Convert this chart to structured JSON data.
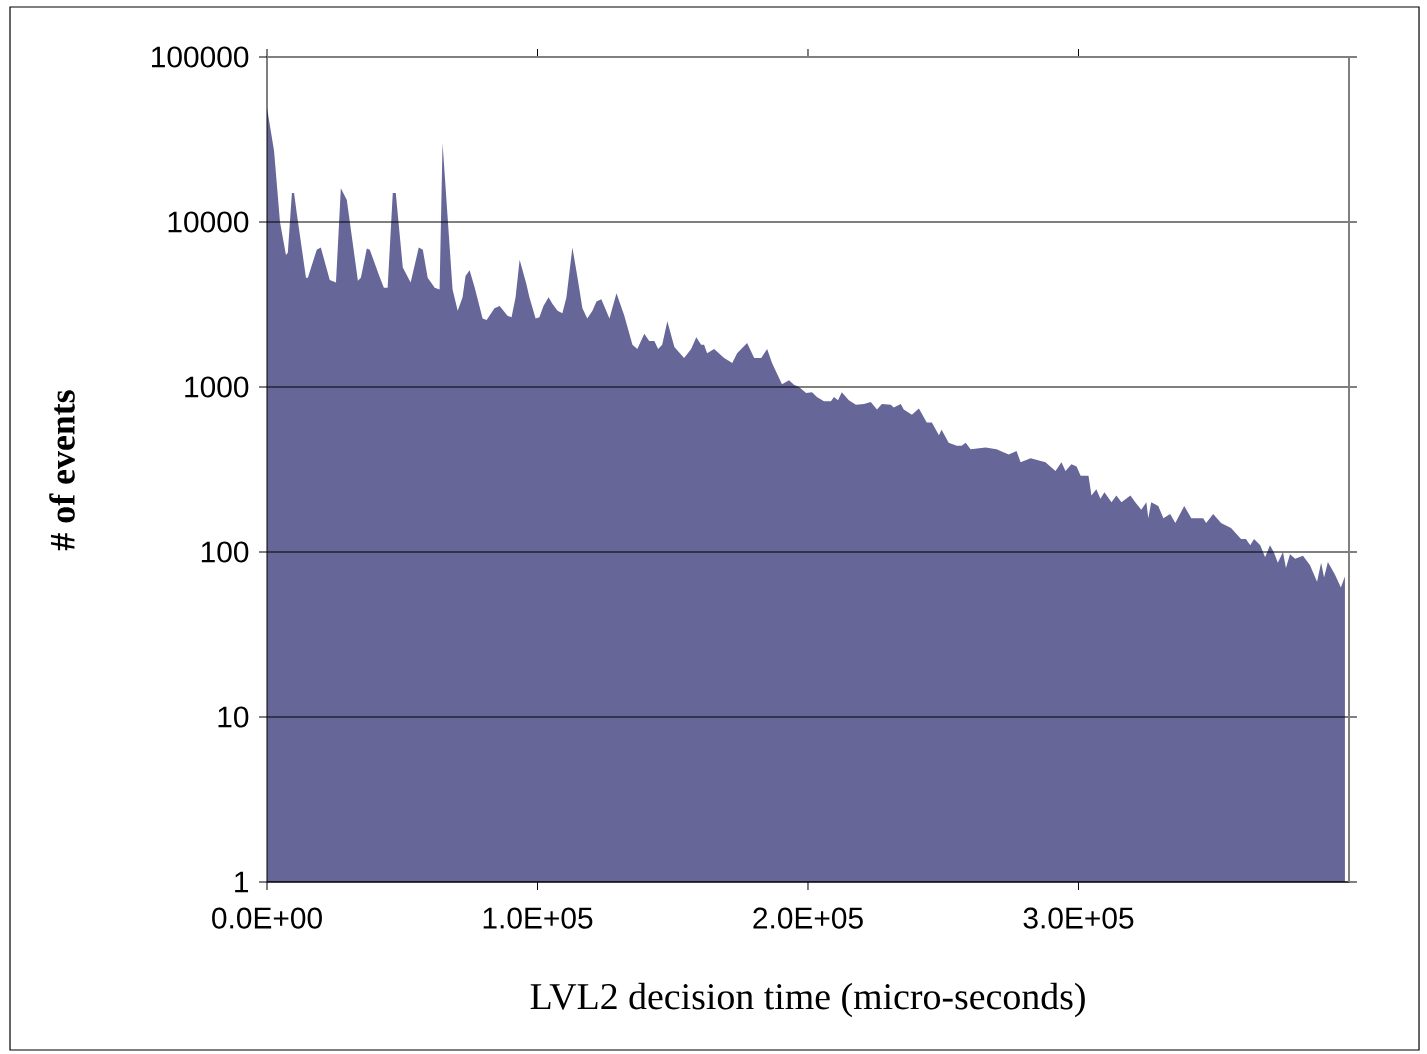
{
  "chart_data": {
    "type": "area",
    "xlabel": "LVL2 decision time (micro-seconds)",
    "ylabel": "# of events",
    "color": "#666699",
    "log": true,
    "grid": "y",
    "xlim": [
      0,
      400000
    ],
    "ylim": [
      1,
      100000
    ],
    "xticks": [
      {
        "value": 0,
        "label": "0.0E+00"
      },
      {
        "value": 100000,
        "label": "1.0E+05"
      },
      {
        "value": 200000,
        "label": "2.0E+05"
      },
      {
        "value": 300000,
        "label": "3.0E+05"
      }
    ],
    "yticks": [
      1,
      10,
      100,
      1000,
      10000,
      100000
    ],
    "x": [
      0,
      2600,
      4800,
      7000,
      7700,
      9200,
      10000,
      11000,
      14400,
      15100,
      18400,
      19900,
      23200,
      25500,
      27300,
      29500,
      33600,
      34700,
      36900,
      38000,
      41300,
      43200,
      44600,
      46500,
      47600,
      50200,
      53100,
      56100,
      57600,
      59400,
      62000,
      63800,
      64900,
      68600,
      70500,
      72300,
      73400,
      74900,
      76800,
      79700,
      81200,
      84100,
      86000,
      88900,
      90400,
      91900,
      93400,
      95900,
      97000,
      99300,
      100700,
      102200,
      104100,
      105500,
      107400,
      109200,
      110700,
      112900,
      114800,
      116600,
      118400,
      120300,
      121800,
      123600,
      126600,
      129200,
      132100,
      135100,
      136900,
      139500,
      141300,
      143200,
      144600,
      146100,
      148000,
      150600,
      154200,
      156800,
      158700,
      160500,
      161600,
      162700,
      165300,
      169000,
      172000,
      173800,
      177500,
      180100,
      182700,
      184900,
      186700,
      190400,
      193000,
      194800,
      196700,
      199300,
      201500,
      203300,
      205900,
      208500,
      209600,
      211100,
      212500,
      215100,
      217700,
      220700,
      223200,
      225500,
      227300,
      230600,
      231700,
      234300,
      235400,
      238400,
      241000,
      243900,
      245800,
      248400,
      249400,
      252000,
      255000,
      256800,
      258300,
      260100,
      265700,
      269700,
      274200,
      277100,
      278600,
      282300,
      287800,
      291500,
      293700,
      295200,
      297400,
      299300,
      300800,
      303700,
      304800,
      306600,
      308100,
      309600,
      312200,
      314000,
      315900,
      319200,
      321000,
      323200,
      325100,
      325800,
      326900,
      329500,
      331400,
      333900,
      335800,
      339100,
      341700,
      343900,
      346100,
      347200,
      349800,
      352700,
      356400,
      360100,
      361900,
      363500,
      364900,
      367200,
      369000,
      370800,
      372300,
      373700,
      375600,
      376700,
      378200,
      380100,
      383000,
      385600,
      388200,
      389700,
      390800,
      392200,
      394800,
      397000,
      398500
    ],
    "values": [
      49000,
      27000,
      10000,
      6300,
      6500,
      15000,
      15000,
      11300,
      4600,
      4600,
      6800,
      7000,
      4450,
      4300,
      16000,
      13600,
      4400,
      4600,
      6900,
      6800,
      4800,
      4000,
      4000,
      15000,
      15000,
      5300,
      4300,
      7000,
      6800,
      4600,
      4000,
      3900,
      30000,
      3900,
      2900,
      3500,
      4700,
      5100,
      4000,
      2600,
      2550,
      3000,
      3100,
      2700,
      2650,
      3500,
      5900,
      4200,
      3500,
      2600,
      2650,
      3100,
      3500,
      3200,
      2900,
      2800,
      3500,
      7000,
      4600,
      3000,
      2600,
      2900,
      3300,
      3400,
      2600,
      3700,
      2700,
      1800,
      1700,
      2100,
      1900,
      1900,
      1700,
      1800,
      2500,
      1750,
      1500,
      1700,
      2000,
      1800,
      1800,
      1600,
      1700,
      1500,
      1400,
      1600,
      1850,
      1500,
      1500,
      1700,
      1400,
      1040,
      1100,
      1030,
      1000,
      920,
      930,
      870,
      820,
      820,
      870,
      830,
      930,
      830,
      780,
      790,
      810,
      730,
      790,
      780,
      750,
      790,
      730,
      680,
      740,
      610,
      610,
      510,
      550,
      460,
      440,
      440,
      460,
      420,
      430,
      420,
      390,
      410,
      350,
      370,
      350,
      310,
      350,
      310,
      340,
      330,
      290,
      290,
      220,
      240,
      210,
      230,
      200,
      220,
      200,
      220,
      200,
      180,
      200,
      160,
      200,
      190,
      160,
      170,
      150,
      190,
      160,
      160,
      160,
      150,
      170,
      150,
      140,
      120,
      120,
      110,
      120,
      110,
      93,
      110,
      99,
      86,
      100,
      80,
      97,
      91,
      95,
      83,
      66,
      86,
      70,
      87,
      73,
      61,
      71
    ]
  }
}
